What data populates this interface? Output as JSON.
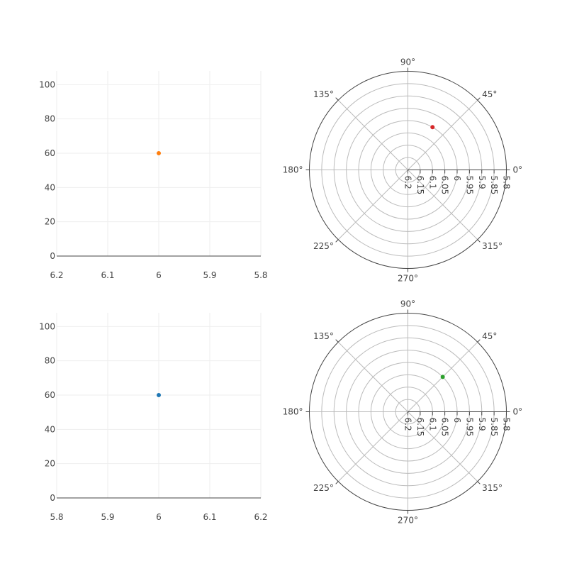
{
  "colors": {
    "grid": "#eeeeee",
    "axis_line": "#444444",
    "polar_grid": "#bbbbbb",
    "polar_outline": "#444444",
    "tick_text": "#444444"
  },
  "chart_data": [
    {
      "id": "cartesian-top",
      "type": "scatter",
      "x_reversed": true,
      "xlim": [
        6.2,
        5.8
      ],
      "ylim": [
        0,
        108
      ],
      "x_ticks": [
        "6.2",
        "6.1",
        "6",
        "5.9",
        "5.8"
      ],
      "x_tick_values": [
        6.2,
        6.1,
        6.0,
        5.9,
        5.8
      ],
      "y_ticks": [
        "0",
        "20",
        "40",
        "60",
        "80",
        "100"
      ],
      "y_tick_values": [
        0,
        20,
        40,
        60,
        80,
        100
      ],
      "grid": true,
      "points": [
        {
          "x": 6,
          "y": 60,
          "color": "#ff7f0e"
        }
      ]
    },
    {
      "id": "polar-top",
      "type": "scatter",
      "polar": true,
      "radial_reversed": true,
      "radial_range": [
        6.2,
        5.8
      ],
      "radial_ticks": [
        "6.2",
        "6.15",
        "6.1",
        "6.05",
        "6",
        "5.95",
        "5.9",
        "5.85",
        "5.8"
      ],
      "radial_tick_values": [
        6.2,
        6.15,
        6.1,
        6.05,
        6.0,
        5.95,
        5.9,
        5.85,
        5.8
      ],
      "angular_ticks": [
        "0°",
        "45°",
        "90°",
        "135°",
        "180°",
        "225°",
        "270°",
        "315°"
      ],
      "angular_tick_values": [
        0,
        45,
        90,
        135,
        180,
        225,
        270,
        315
      ],
      "points": [
        {
          "r": 6,
          "theta": 60,
          "color": "#d62728"
        }
      ]
    },
    {
      "id": "cartesian-bottom",
      "type": "scatter",
      "x_reversed": false,
      "xlim": [
        5.8,
        6.2
      ],
      "ylim": [
        0,
        108
      ],
      "x_ticks": [
        "5.8",
        "5.9",
        "6",
        "6.1",
        "6.2"
      ],
      "x_tick_values": [
        5.8,
        5.9,
        6.0,
        6.1,
        6.2
      ],
      "y_ticks": [
        "0",
        "20",
        "40",
        "60",
        "80",
        "100"
      ],
      "y_tick_values": [
        0,
        20,
        40,
        60,
        80,
        100
      ],
      "grid": true,
      "points": [
        {
          "x": 6,
          "y": 60,
          "color": "#1f77b4"
        }
      ]
    },
    {
      "id": "polar-bottom",
      "type": "scatter",
      "polar": true,
      "radial_reversed": true,
      "radial_range": [
        6.2,
        5.8
      ],
      "radial_ticks": [
        "6.2",
        "6.15",
        "6.1",
        "6.05",
        "6",
        "5.95",
        "5.9",
        "5.85",
        "5.8"
      ],
      "radial_tick_values": [
        6.2,
        6.15,
        6.1,
        6.05,
        6.0,
        5.95,
        5.9,
        5.85,
        5.8
      ],
      "angular_ticks": [
        "0°",
        "45°",
        "90°",
        "135°",
        "180°",
        "225°",
        "270°",
        "315°"
      ],
      "angular_tick_values": [
        0,
        45,
        90,
        135,
        180,
        225,
        270,
        315
      ],
      "points": [
        {
          "r": 6,
          "theta": 45,
          "color": "#2ca02c"
        }
      ]
    }
  ]
}
